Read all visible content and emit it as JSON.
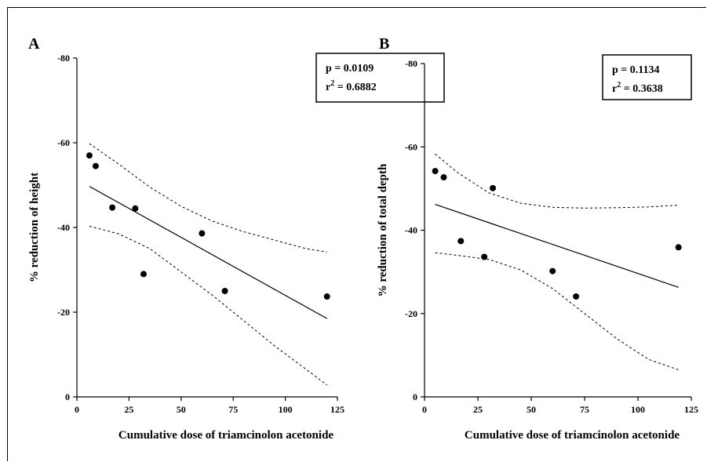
{
  "chart_data": [
    {
      "type": "scatter",
      "panel_label": "A",
      "xlabel": "Cumulative dose of triamcinolon acetonide",
      "ylabel": "% reduction of height",
      "xlim": [
        0,
        125
      ],
      "ylim": [
        0,
        -80
      ],
      "xticks": [
        "0",
        "25",
        "50",
        "75",
        "100",
        "125"
      ],
      "yticks": [
        "0",
        "-20",
        "-40",
        "-60",
        "-80"
      ],
      "points": [
        {
          "x": 6,
          "y": -57
        },
        {
          "x": 9,
          "y": -54.5
        },
        {
          "x": 17,
          "y": -44.7
        },
        {
          "x": 28,
          "y": -44.5
        },
        {
          "x": 32,
          "y": -29
        },
        {
          "x": 60,
          "y": -38.6
        },
        {
          "x": 71,
          "y": -25
        },
        {
          "x": 120,
          "y": -23.7
        }
      ],
      "regression": {
        "x": [
          6,
          120
        ],
        "y": [
          -49.7,
          -18.5
        ]
      },
      "ci_upper": {
        "x": [
          6,
          20,
          35,
          50,
          65,
          80,
          95,
          110,
          120
        ],
        "y": [
          -59.8,
          -55,
          -49.5,
          -45,
          -41.5,
          -39,
          -37,
          -35,
          -34.2
        ]
      },
      "ci_lower": {
        "x": [
          6,
          20,
          35,
          50,
          65,
          80,
          95,
          110,
          120
        ],
        "y": [
          -40.3,
          -38.5,
          -35,
          -29.5,
          -24,
          -18,
          -12,
          -6.5,
          -2.8
        ]
      },
      "annotation": {
        "p_text": "p = 0.0109",
        "r2_prefix": "r",
        "r2_exp": "2",
        "r2_value": " = 0.6882"
      },
      "grid": false
    },
    {
      "type": "scatter",
      "panel_label": "B",
      "xlabel": "Cumulative dose of triamcinolon acetonide",
      "ylabel": "% reduction of total depth",
      "xlim": [
        0,
        125
      ],
      "ylim": [
        0,
        -80
      ],
      "xticks": [
        "0",
        "25",
        "50",
        "75",
        "100",
        "125"
      ],
      "yticks": [
        "0",
        "-20",
        "-40",
        "-60",
        "-80"
      ],
      "points": [
        {
          "x": 5,
          "y": -54.2
        },
        {
          "x": 9,
          "y": -52.7
        },
        {
          "x": 17,
          "y": -37.4
        },
        {
          "x": 28,
          "y": -33.6
        },
        {
          "x": 32,
          "y": -50.1
        },
        {
          "x": 60,
          "y": -30.2
        },
        {
          "x": 71,
          "y": -24.1
        },
        {
          "x": 119,
          "y": -35.9
        }
      ],
      "regression": {
        "x": [
          5,
          119
        ],
        "y": [
          -46.2,
          -26.3
        ]
      },
      "ci_upper": {
        "x": [
          5,
          15,
          30,
          45,
          60,
          75,
          90,
          105,
          119
        ],
        "y": [
          -58.3,
          -54,
          -49,
          -46.5,
          -45.5,
          -45.3,
          -45.4,
          -45.6,
          -46
        ]
      },
      "ci_lower": {
        "x": [
          5,
          15,
          30,
          45,
          60,
          75,
          90,
          105,
          119
        ],
        "y": [
          -34.6,
          -34,
          -33,
          -30.5,
          -26,
          -20,
          -14,
          -9,
          -6.5
        ]
      },
      "annotation": {
        "p_text": "p = 0.1134",
        "r2_prefix": "r",
        "r2_exp": "2",
        "r2_value": " = 0.3638"
      },
      "grid": false
    }
  ]
}
